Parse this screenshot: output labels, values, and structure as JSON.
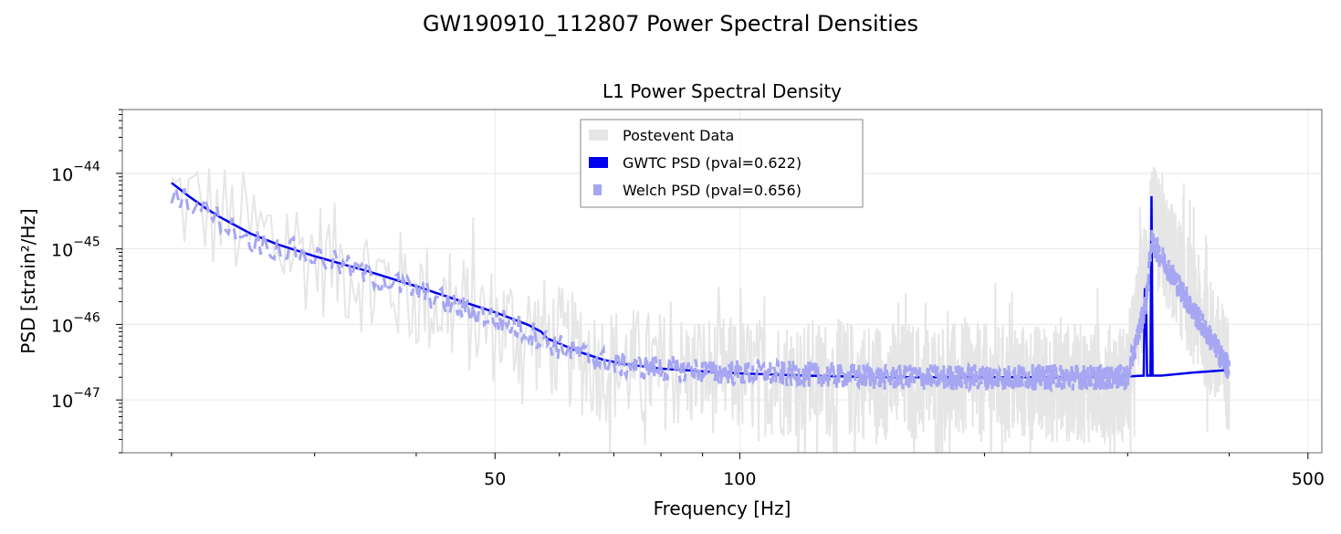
{
  "figure": {
    "suptitle": "GW190910_112807 Power Spectral Densities"
  },
  "chart_data": {
    "type": "line",
    "title": "L1 Power Spectral Density",
    "xlabel": "Frequency [Hz]",
    "ylabel": "PSD [strain²/Hz]",
    "xscale": "log",
    "yscale": "log",
    "xlim": [
      17.4,
      520
    ],
    "ylim": [
      2e-48,
      7e-44
    ],
    "xticks": [
      50,
      100,
      500
    ],
    "xtick_labels": [
      "50",
      "100",
      "500"
    ],
    "yticks": [
      1e-47,
      1e-46,
      1e-45,
      1e-44
    ],
    "ytick_labels": [
      {
        "base": "10",
        "exp": "−47"
      },
      {
        "base": "10",
        "exp": "−46"
      },
      {
        "base": "10",
        "exp": "−45"
      },
      {
        "base": "10",
        "exp": "−44"
      }
    ],
    "grid": true,
    "legend_position": "upper center",
    "series": [
      {
        "name": "Postevent Data",
        "color": "#e6e6e6",
        "style": "noisy",
        "x": [
          20,
          25,
          30,
          40,
          50,
          58,
          65,
          80,
          100,
          150,
          200,
          300,
          318,
          320,
          400
        ],
        "y": [
          6e-45,
          2e-45,
          1e-45,
          3e-46,
          1.2e-46,
          8e-47,
          4e-47,
          3e-47,
          2.5e-47,
          2.2e-47,
          2e-47,
          2e-47,
          1e-45,
          3e-45,
          2.5e-47
        ]
      },
      {
        "name": "GWTC PSD (pval=0.622)",
        "color": "#0000ee",
        "style": "solid",
        "x": [
          20,
          21,
          22,
          23,
          25,
          27,
          30,
          35,
          40,
          45,
          50,
          55,
          57,
          58,
          60,
          62,
          64,
          68,
          72,
          80,
          90,
          100,
          120,
          150,
          200,
          250,
          300,
          314,
          315,
          316,
          317,
          320,
          321,
          322,
          323,
          330,
          360,
          400
        ],
        "y": [
          7.5e-45,
          5e-45,
          3.5e-45,
          2.6e-45,
          1.6e-45,
          1.15e-45,
          8e-46,
          5e-46,
          3.2e-46,
          2.1e-46,
          1.45e-46,
          9.8e-47,
          8e-47,
          6.5e-47,
          5.6e-47,
          4.8e-47,
          4.2e-47,
          3.4e-47,
          3e-47,
          2.6e-47,
          2.4e-47,
          2.25e-47,
          2.1e-47,
          2e-47,
          2e-47,
          2e-47,
          2.05e-47,
          2.1e-47,
          3e-46,
          2.8e-46,
          2.1e-47,
          2.1e-47,
          5e-45,
          2.1e-47,
          2.1e-47,
          2.1e-47,
          2.3e-47,
          2.5e-47
        ]
      },
      {
        "name": "Welch PSD (pval=0.656)",
        "color": "#a6a6f2",
        "style": "dashed",
        "x": [
          20,
          22,
          25,
          30,
          35,
          40,
          45,
          50,
          55,
          60,
          65,
          70,
          80,
          100,
          150,
          200,
          300,
          316,
          321,
          400
        ],
        "y": [
          6e-45,
          3.3e-45,
          1.3e-45,
          8e-46,
          4.5e-46,
          2.8e-46,
          1.7e-46,
          1.2e-46,
          8e-47,
          5e-47,
          3.8e-47,
          3e-47,
          2.6e-47,
          2.3e-47,
          2e-47,
          2e-47,
          2e-47,
          2e-46,
          1.3e-45,
          2.5e-47
        ]
      }
    ]
  }
}
